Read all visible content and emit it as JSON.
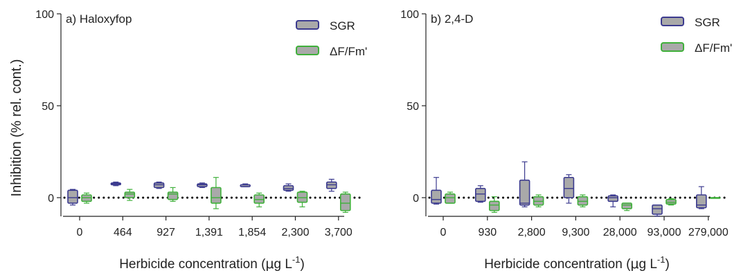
{
  "figure": {
    "ylabel": "Inhibition (% rel. cont.)",
    "xlabel_main": "Herbicide concentration (",
    "xlabel_mu": "μ",
    "xlabel_unit": "g L",
    "xlabel_exp": "-1",
    "xlabel_close": ")"
  },
  "colors": {
    "sgr_stroke": "#3b3a8f",
    "dffm_stroke": "#3fb03a",
    "box_fill": "#a9a9a9",
    "baseline": "#000000"
  },
  "chart_data": [
    {
      "type": "box",
      "title": "a) Haloxyfop",
      "categories": [
        "0",
        "464",
        "927",
        "1,391",
        "1,854",
        "2,300",
        "3,700"
      ],
      "ylim": [
        -10,
        100
      ],
      "yticks": [
        "0",
        "50",
        "100"
      ],
      "ytick_values": [
        0,
        50,
        100
      ],
      "legend_position": "top-right",
      "series": [
        {
          "name": "SGR",
          "stroke_key": "sgr_stroke",
          "boxes": [
            {
              "min": -4,
              "q1": -3,
              "median": 0,
              "q3": 4,
              "max": 4.5
            },
            {
              "min": 6.5,
              "q1": 7,
              "median": 7.5,
              "q3": 8,
              "max": 8.5
            },
            {
              "min": 5,
              "q1": 5.5,
              "median": 7,
              "q3": 8,
              "max": 8.5
            },
            {
              "min": 5.5,
              "q1": 6,
              "median": 7,
              "q3": 7.5,
              "max": 8
            },
            {
              "min": 6,
              "q1": 6,
              "median": 7,
              "q3": 7,
              "max": 7.5
            },
            {
              "min": 3.5,
              "q1": 4,
              "median": 5,
              "q3": 6.5,
              "max": 7.5
            },
            {
              "min": 3.5,
              "q1": 5,
              "median": 7,
              "q3": 8.5,
              "max": 10
            }
          ]
        },
        {
          "name": "ΔF/Fm'",
          "stroke_key": "dffm_stroke",
          "boxes": [
            {
              "min": -3,
              "q1": -2,
              "median": 0,
              "q3": 1.5,
              "max": 2.5
            },
            {
              "min": -1.5,
              "q1": 0,
              "median": 2,
              "q3": 3,
              "max": 4.5
            },
            {
              "min": -2,
              "q1": -1,
              "median": 2,
              "q3": 3,
              "max": 5.5
            },
            {
              "min": -6,
              "q1": -3,
              "median": 0,
              "q3": 5.5,
              "max": 11
            },
            {
              "min": -5,
              "q1": -3,
              "median": -1,
              "q3": 1.5,
              "max": 2.5
            },
            {
              "min": -5,
              "q1": -2.5,
              "median": 0,
              "q3": 3,
              "max": 3.5
            },
            {
              "min": -8,
              "q1": -7,
              "median": -3,
              "q3": 2,
              "max": 3
            }
          ]
        }
      ]
    },
    {
      "type": "box",
      "title": "b) 2,4-D",
      "categories": [
        "0",
        "930",
        "2,800",
        "9,300",
        "28,000",
        "93,000",
        "279,000"
      ],
      "ylim": [
        -10,
        100
      ],
      "yticks": [
        "0",
        "50",
        "100"
      ],
      "ytick_values": [
        0,
        50,
        100
      ],
      "legend_position": "top-right",
      "series": [
        {
          "name": "SGR",
          "stroke_key": "sgr_stroke",
          "boxes": [
            {
              "min": -3.5,
              "q1": -3,
              "median": -1,
              "q3": 4,
              "max": 11
            },
            {
              "min": -2.5,
              "q1": -2,
              "median": 2,
              "q3": 5,
              "max": 6.5
            },
            {
              "min": -5,
              "q1": -4,
              "median": -3,
              "q3": 9.5,
              "max": 19.5
            },
            {
              "min": -3,
              "q1": 0,
              "median": 5,
              "q3": 11,
              "max": 12.5
            },
            {
              "min": -5,
              "q1": -2,
              "median": 0,
              "q3": 1,
              "max": 1.5
            },
            {
              "min": -10,
              "q1": -9,
              "median": -6,
              "q3": -4,
              "max": -4
            },
            {
              "min": -6,
              "q1": -5.5,
              "median": -4,
              "q3": 1.5,
              "max": 6
            }
          ]
        },
        {
          "name": "ΔF/Fm'",
          "stroke_key": "dffm_stroke",
          "boxes": [
            {
              "min": -3,
              "q1": -3,
              "median": 0,
              "q3": 2,
              "max": 3
            },
            {
              "min": -8,
              "q1": -7,
              "median": -4,
              "q3": -2,
              "max": 0.5
            },
            {
              "min": -5,
              "q1": -4,
              "median": -2,
              "q3": 0.5,
              "max": 1.5
            },
            {
              "min": -5,
              "q1": -4,
              "median": -2,
              "q3": 0.5,
              "max": 1.5
            },
            {
              "min": -7,
              "q1": -6,
              "median": -4,
              "q3": -3,
              "max": -3
            },
            {
              "min": -4,
              "q1": -3.5,
              "median": -2.5,
              "q3": -1,
              "max": -0.5
            },
            {
              "min": 0,
              "q1": 0,
              "median": 0,
              "q3": 0,
              "max": 0
            }
          ]
        }
      ]
    }
  ]
}
